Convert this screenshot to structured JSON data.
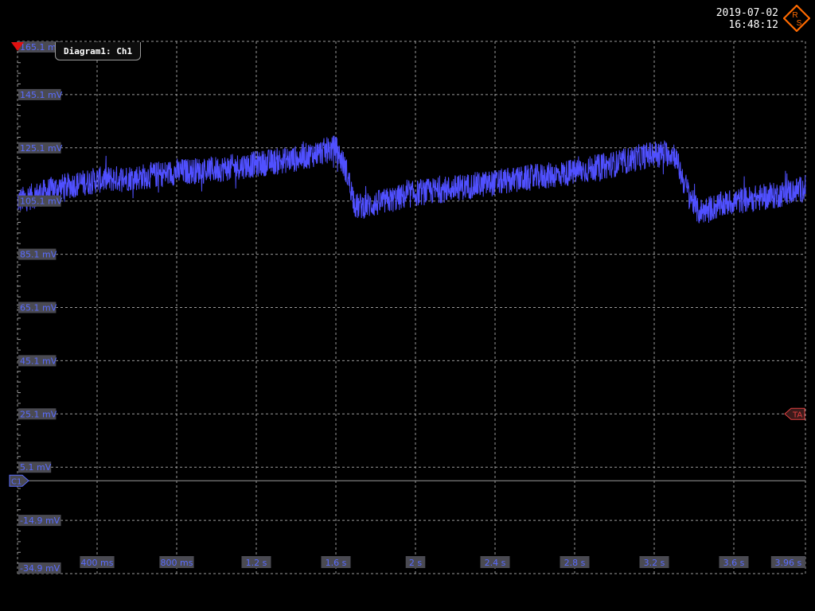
{
  "header": {
    "date": "2019-07-02",
    "time": "16:48:12",
    "logo_letters": [
      "R",
      "S"
    ]
  },
  "diagram": {
    "tab_label": "Diagram1: Ch1",
    "channel_marker": "C1",
    "trigger_marker": "TA"
  },
  "colors": {
    "background": "#000000",
    "trace": "#5050ff",
    "label_bg": "#4a4a52",
    "label_fg": "#5a6cff",
    "grid": "#9a9a9a",
    "brand": "#ff6a00",
    "trigger": "#e04040"
  },
  "chart_data": {
    "type": "line",
    "title": "",
    "xlabel": "",
    "ylabel": "",
    "xlim": [
      0,
      3.96
    ],
    "ylim": [
      -34.9,
      165.1
    ],
    "x_tick_labels": [
      "400 ms",
      "800 ms",
      "1.2 s",
      "1.6 s",
      "2 s",
      "2.4 s",
      "2.8 s",
      "3.2 s",
      "3.6 s",
      "3.96 s"
    ],
    "y_tick_labels": [
      "165.1 mV",
      "145.1 mV",
      "125.1 mV",
      "105.1 mV",
      "85.1 mV",
      "65.1 mV",
      "45.1 mV",
      "25.1 mV",
      "5.1 mV",
      "-14.9 mV",
      "-34.9 mV"
    ],
    "grid": true,
    "trigger_level_mV": 25.1,
    "channel_offset_mV": 0,
    "series": [
      {
        "x": [
          0,
          0.2,
          0.4,
          0.6,
          0.8,
          1.0,
          1.2,
          1.4,
          1.6,
          1.65,
          1.7,
          1.8,
          2.0,
          2.2,
          2.4,
          2.6,
          2.8,
          3.0,
          3.2,
          3.3,
          3.35,
          3.42,
          3.6,
          3.8,
          3.96
        ],
        "values": [
          105,
          110,
          113,
          114,
          116,
          117,
          119,
          121,
          125,
          117,
          103,
          104,
          108,
          110,
          112,
          114,
          116,
          119,
          123,
          123,
          112,
          101,
          105,
          107,
          110
        ],
        "noise_pp_mV": 10
      }
    ]
  }
}
